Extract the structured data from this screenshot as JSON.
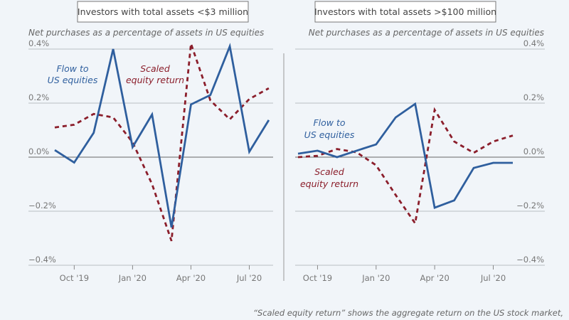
{
  "chart_data": [
    {
      "type": "line",
      "title": "Investors with total assets <$3 million",
      "ylabel": "Net purchases as a percentage of assets in US equities",
      "xlabel": "",
      "ylim": [
        -0.4,
        0.4
      ],
      "yticks": [
        0.4,
        0.2,
        0.0,
        -0.2,
        -0.4
      ],
      "ytick_labels": [
        "0.4%",
        "0.2%",
        "0.0%",
        "−0.2%",
        "−0.4%"
      ],
      "x": [
        "Sep '19",
        "Oct '19",
        "Nov '19",
        "Dec '19",
        "Jan '20",
        "Feb '20",
        "Mar '20",
        "Apr '20",
        "May '20",
        "Jun '20",
        "Jul '20",
        "Aug '20"
      ],
      "xtick_labels": [
        "Oct '19",
        "Jan '20",
        "Apr '20",
        "Jul '20"
      ],
      "xtick_index": [
        1,
        4,
        7,
        10
      ],
      "grid": true,
      "series": [
        {
          "name": "Flow to US equities",
          "label_lines": [
            "Flow to",
            "US equities"
          ],
          "color": "#2f5f9e",
          "style": "solid",
          "values": [
            0.026,
            -0.02,
            0.09,
            0.4,
            0.037,
            0.158,
            -0.26,
            0.195,
            0.23,
            0.41,
            0.02,
            0.137
          ]
        },
        {
          "name": "Scaled equity return",
          "label_lines": [
            "Scaled",
            "equity return"
          ],
          "color": "#8b1e2b",
          "style": "dashed",
          "values": [
            0.11,
            0.12,
            0.16,
            0.147,
            0.055,
            -0.1,
            -0.31,
            0.42,
            0.21,
            0.14,
            0.215,
            0.255
          ]
        }
      ],
      "legend": "inline-labels"
    },
    {
      "type": "line",
      "title": "Investors with total assets >$100 million",
      "ylabel": "Net purchases as a percentage of assets in US equities",
      "xlabel": "",
      "ylim": [
        -0.4,
        0.4
      ],
      "yticks": [
        0.4,
        0.2,
        0.0,
        -0.2,
        -0.4
      ],
      "ytick_labels": [
        "0.4%",
        "0.2%",
        "0.0%",
        "−0.2%",
        "−0.4%"
      ],
      "x": [
        "Sep '19",
        "Oct '19",
        "Nov '19",
        "Dec '19",
        "Jan '20",
        "Feb '20",
        "Mar '20",
        "Apr '20",
        "May '20",
        "Jun '20",
        "Jul '20",
        "Aug '20"
      ],
      "xtick_labels": [
        "Oct '19",
        "Jan '20",
        "Apr '20",
        "Jul '20"
      ],
      "xtick_index": [
        1,
        4,
        7,
        10
      ],
      "grid": true,
      "series": [
        {
          "name": "Flow to US equities",
          "label_lines": [
            "Flow to",
            "US equities"
          ],
          "color": "#2f5f9e",
          "style": "solid",
          "values": [
            0.013,
            0.024,
            0.0,
            0.024,
            0.047,
            0.147,
            0.197,
            -0.187,
            -0.16,
            -0.04,
            -0.021,
            -0.021
          ]
        },
        {
          "name": "Scaled equity return",
          "label_lines": [
            "Scaled",
            "equity return"
          ],
          "color": "#8b1e2b",
          "style": "dashed",
          "values": [
            0.0,
            0.005,
            0.03,
            0.018,
            -0.03,
            -0.14,
            -0.245,
            0.175,
            0.058,
            0.016,
            0.058,
            0.08
          ]
        }
      ],
      "legend": "inline-labels"
    }
  ],
  "footnote": "“Scaled equity return” shows the aggregate return on the US stock market,"
}
